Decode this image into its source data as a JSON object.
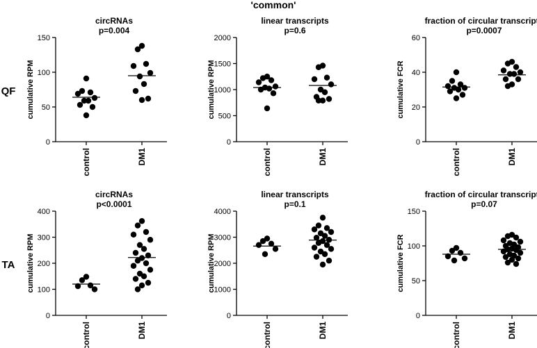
{
  "figure": {
    "title": "'common'"
  },
  "row_labels": [
    "QF",
    "TA"
  ],
  "chart_data": [
    {
      "type": "scatter",
      "row": "QF",
      "title": "circRNAs",
      "pvalue": "p=0.004",
      "ylabel": "cumulative RPM",
      "ylim": [
        0,
        150
      ],
      "yticks": [
        0,
        50,
        100,
        150
      ],
      "categories": [
        "control",
        "DM1"
      ],
      "series": [
        {
          "name": "control",
          "values": [
            91,
            73,
            71,
            69,
            63,
            59,
            59,
            53,
            50,
            38
          ],
          "mean": 64
        },
        {
          "name": "DM1",
          "values": [
            138,
            133,
            112,
            109,
            99,
            94,
            83,
            73,
            62,
            60
          ],
          "mean": 95
        }
      ]
    },
    {
      "type": "scatter",
      "row": "QF",
      "title": "linear transcripts",
      "pvalue": "p=0.6",
      "ylabel": "cumulative RPM",
      "ylim": [
        0,
        2000
      ],
      "yticks": [
        0,
        500,
        1000,
        1500,
        2000
      ],
      "categories": [
        "control",
        "DM1"
      ],
      "series": [
        {
          "name": "control",
          "values": [
            1250,
            1220,
            1180,
            1140,
            1060,
            1040,
            1020,
            1000,
            930,
            640
          ],
          "mean": 1040
        },
        {
          "name": "DM1",
          "values": [
            1460,
            1430,
            1230,
            1200,
            1100,
            1000,
            950,
            860,
            820,
            790,
            790
          ],
          "mean": 1080
        }
      ]
    },
    {
      "type": "scatter",
      "row": "QF",
      "title": "fraction of circular transcripts",
      "pvalue": "p=0.0007",
      "ylabel": "cumulative FCR",
      "ylim": [
        0,
        60
      ],
      "yticks": [
        0,
        20,
        40,
        60
      ],
      "categories": [
        "control",
        "DM1"
      ],
      "series": [
        {
          "name": "control",
          "values": [
            40,
            35,
            33,
            32,
            31,
            31,
            30,
            29,
            27,
            25
          ],
          "mean": 31.5
        },
        {
          "name": "DM1",
          "values": [
            46,
            45,
            43,
            41,
            40,
            39,
            39,
            36,
            36,
            33,
            32
          ],
          "mean": 38.5
        }
      ]
    },
    {
      "type": "scatter",
      "row": "TA",
      "title": "circRNAs",
      "pvalue": "p<0.0001",
      "ylabel": "cumulative RPM",
      "ylim": [
        0,
        400
      ],
      "yticks": [
        0,
        100,
        200,
        300,
        400
      ],
      "categories": [
        "control",
        "DM1"
      ],
      "series": [
        {
          "name": "control",
          "values": [
            148,
            135,
            115,
            112,
            100
          ],
          "mean": 120
        },
        {
          "name": "DM1",
          "values": [
            362,
            345,
            320,
            310,
            290,
            270,
            255,
            240,
            230,
            220,
            210,
            200,
            190,
            175,
            160,
            150,
            140,
            125,
            115,
            100
          ],
          "mean": 222
        }
      ]
    },
    {
      "type": "scatter",
      "row": "TA",
      "title": "linear transcripts",
      "pvalue": "p=0.1",
      "ylabel": "cumulative RPM",
      "ylim": [
        0,
        4000
      ],
      "yticks": [
        0,
        1000,
        2000,
        3000,
        4000
      ],
      "categories": [
        "control",
        "DM1"
      ],
      "series": [
        {
          "name": "control",
          "values": [
            2950,
            2850,
            2750,
            2700,
            2550,
            2350
          ],
          "mean": 2660
        },
        {
          "name": "DM1",
          "values": [
            3750,
            3450,
            3350,
            3300,
            3200,
            3150,
            3050,
            2980,
            2900,
            2850,
            2780,
            2700,
            2600,
            2550,
            2450,
            2350,
            2250,
            2100,
            1950
          ],
          "mean": 2890
        }
      ]
    },
    {
      "type": "scatter",
      "row": "TA",
      "title": "fraction of circular transcripts",
      "pvalue": "p=0.07",
      "ylabel": "cumulative FCR",
      "ylim": [
        0,
        150
      ],
      "yticks": [
        0,
        50,
        100,
        150
      ],
      "categories": [
        "control",
        "DM1"
      ],
      "series": [
        {
          "name": "control",
          "values": [
            97,
            93,
            90,
            85,
            82,
            79
          ],
          "mean": 88
        },
        {
          "name": "DM1",
          "values": [
            116,
            114,
            112,
            108,
            106,
            104,
            102,
            100,
            98,
            96,
            95,
            94,
            92,
            90,
            88,
            86,
            84,
            82,
            80,
            76,
            74
          ],
          "mean": 95
        }
      ]
    }
  ]
}
